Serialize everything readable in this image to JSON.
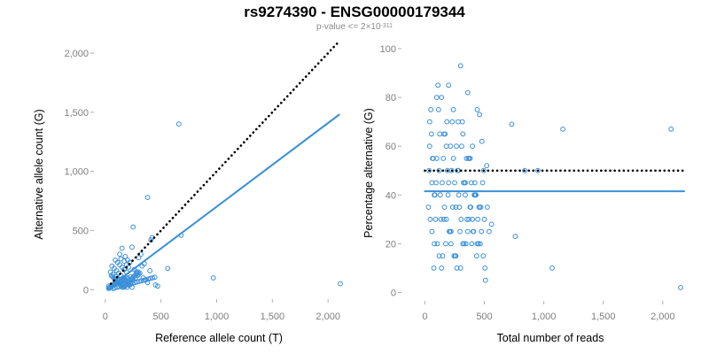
{
  "title": "rs9274390 - ENSG00000179344",
  "subtitle": {
    "prefix": "p-value <= 2×10",
    "exponent": "-311"
  },
  "colors": {
    "points": "#3a8fd9",
    "fit_line": "#3a8fd9",
    "reference_line": "#000000",
    "tick_text": "#7f7f7f"
  },
  "chart_data": [
    {
      "type": "scatter",
      "title": "",
      "xlabel": "Reference allele count (T)",
      "ylabel": "Alternative allele count (G)",
      "xlim": [
        -70,
        2110
      ],
      "ylim": [
        -50,
        2000
      ],
      "xticks": [
        0,
        500,
        1000,
        1500,
        2000
      ],
      "xtick_labels": [
        "0",
        "500",
        "1,000",
        "1,500",
        "2,000"
      ],
      "yticks": [
        0,
        500,
        1000,
        1500,
        2000
      ],
      "ytick_labels": [
        "0",
        "500",
        "1,000",
        "1,500",
        "2,000"
      ],
      "grid": false,
      "lines": [
        {
          "style": "dotted",
          "color": "#000000",
          "x": [
            50,
            2100
          ],
          "y": [
            50,
            2100
          ]
        },
        {
          "style": "solid",
          "color": "#3a8fd9",
          "x": [
            50,
            2100
          ],
          "y": [
            30,
            1480
          ]
        }
      ],
      "points_x": [
        660,
        970,
        2110,
        680,
        380,
        410,
        420,
        560,
        250,
        240,
        320,
        300,
        350,
        330,
        400,
        450,
        470,
        180,
        200,
        220,
        150,
        130,
        140,
        170,
        190,
        210,
        260,
        280,
        300,
        230,
        160,
        120,
        110,
        100,
        90,
        80,
        70,
        60,
        50,
        40,
        30,
        55,
        65,
        75,
        85,
        95,
        105,
        115,
        125,
        135,
        145,
        155,
        165,
        175,
        185,
        195,
        205,
        215,
        225,
        235,
        245,
        255,
        265,
        275,
        285,
        295,
        60,
        80,
        100,
        120,
        140,
        160,
        180,
        200,
        220,
        240,
        45,
        70,
        95,
        110,
        130,
        150,
        175,
        195,
        210,
        230,
        250,
        270,
        290,
        310,
        340,
        360,
        380,
        30,
        35,
        40,
        50,
        60,
        70,
        80,
        90,
        100,
        110,
        120,
        130,
        140,
        150,
        160,
        170,
        180,
        190,
        200,
        90,
        110,
        130,
        150,
        170,
        190,
        70,
        85,
        105,
        125,
        145,
        165,
        185,
        205,
        225,
        245,
        265,
        285,
        305,
        325,
        345,
        365,
        385,
        405,
        425,
        445
      ],
      "points_y": [
        1400,
        100,
        50,
        460,
        780,
        420,
        440,
        180,
        530,
        360,
        300,
        270,
        220,
        200,
        160,
        40,
        30,
        280,
        250,
        230,
        350,
        300,
        260,
        240,
        210,
        190,
        170,
        150,
        130,
        110,
        100,
        90,
        80,
        70,
        60,
        50,
        40,
        30,
        20,
        20,
        30,
        120,
        110,
        100,
        90,
        80,
        70,
        60,
        50,
        40,
        30,
        20,
        20,
        30,
        40,
        50,
        60,
        70,
        80,
        90,
        100,
        110,
        120,
        130,
        140,
        150,
        200,
        180,
        160,
        140,
        120,
        100,
        80,
        60,
        40,
        20,
        150,
        130,
        110,
        90,
        70,
        50,
        30,
        20,
        40,
        60,
        80,
        100,
        120,
        140,
        100,
        80,
        60,
        10,
        15,
        20,
        25,
        30,
        35,
        40,
        45,
        50,
        55,
        60,
        65,
        70,
        75,
        80,
        85,
        90,
        95,
        100,
        250,
        230,
        210,
        190,
        170,
        150,
        10,
        15,
        20,
        25,
        30,
        35,
        40,
        45,
        50,
        55,
        60,
        65,
        70,
        75,
        80,
        85,
        90,
        95,
        100,
        105
      ]
    },
    {
      "type": "scatter",
      "title": "",
      "xlabel": "Total number of reads",
      "ylabel": "Percentage alternative (G)",
      "xlim": [
        -70,
        2180
      ],
      "ylim": [
        -2,
        100
      ],
      "xticks": [
        0,
        500,
        1000,
        1500,
        2000
      ],
      "xtick_labels": [
        "0",
        "500",
        "1,000",
        "1,500",
        "2,000"
      ],
      "yticks": [
        0,
        20,
        40,
        60,
        80,
        100
      ],
      "ytick_labels": [
        "0",
        "20",
        "40",
        "60",
        "80",
        "100"
      ],
      "grid": false,
      "lines": [
        {
          "style": "dotted",
          "color": "#000000",
          "x": [
            0,
            2180
          ],
          "y": [
            50,
            50
          ]
        },
        {
          "style": "solid",
          "color": "#3a8fd9",
          "x": [
            0,
            2180
          ],
          "y": [
            41.5,
            41.5
          ]
        }
      ],
      "points_x": [
        2150,
        1160,
        1070,
        760,
        730,
        950,
        840,
        2070,
        560,
        540,
        520,
        500,
        480,
        460,
        440,
        420,
        400,
        380,
        360,
        340,
        320,
        300,
        280,
        260,
        240,
        220,
        200,
        180,
        160,
        140,
        120,
        100,
        80,
        60,
        40,
        30,
        50,
        70,
        90,
        110,
        130,
        150,
        170,
        190,
        210,
        230,
        250,
        270,
        290,
        310,
        330,
        350,
        370,
        390,
        410,
        430,
        450,
        470,
        490,
        510,
        40,
        60,
        80,
        100,
        120,
        140,
        160,
        180,
        200,
        220,
        240,
        260,
        280,
        300,
        320,
        340,
        360,
        380,
        400,
        420,
        440,
        460,
        35,
        55,
        75,
        95,
        115,
        135,
        155,
        175,
        195,
        215,
        235,
        255,
        275,
        295,
        315,
        335,
        355,
        375,
        395,
        415,
        435,
        455,
        475,
        495,
        45,
        65,
        85,
        105,
        125,
        145,
        165,
        185,
        205,
        225,
        245,
        265,
        285,
        305,
        325,
        345,
        365,
        385,
        405,
        425,
        445,
        465,
        485,
        505,
        525
      ],
      "points_y": [
        2,
        67,
        10,
        23,
        69,
        50,
        50,
        67,
        28,
        25,
        52,
        30,
        62,
        73,
        75,
        40,
        60,
        35,
        82,
        45,
        20,
        93,
        70,
        15,
        55,
        25,
        85,
        30,
        65,
        10,
        50,
        80,
        20,
        45,
        60,
        35,
        75,
        55,
        30,
        85,
        40,
        15,
        65,
        50,
        25,
        70,
        45,
        10,
        35,
        60,
        20,
        55,
        30,
        45,
        25,
        40,
        20,
        35,
        15,
        5,
        70,
        25,
        40,
        55,
        15,
        80,
        30,
        60,
        45,
        20,
        75,
        35,
        50,
        10,
        65,
        40,
        25,
        55,
        30,
        45,
        20,
        35,
        50,
        65,
        10,
        45,
        75,
        30,
        55,
        20,
        40,
        60,
        35,
        15,
        50,
        25,
        70,
        45,
        30,
        55,
        20,
        40,
        15,
        35,
        25,
        50,
        30,
        55,
        40,
        20,
        65,
        45,
        35,
        70,
        25,
        50,
        15,
        60,
        40,
        30,
        45,
        20,
        55,
        35,
        25,
        40,
        30,
        20,
        45,
        10,
        35
      ]
    }
  ]
}
